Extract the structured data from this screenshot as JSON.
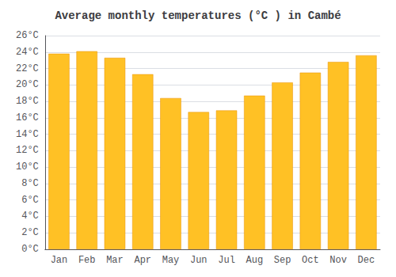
{
  "chart_data": {
    "type": "bar",
    "title": "Average monthly temperatures (°C ) in Cambé",
    "categories": [
      "Jan",
      "Feb",
      "Mar",
      "Apr",
      "May",
      "Jun",
      "Jul",
      "Aug",
      "Sep",
      "Oct",
      "Nov",
      "Dec"
    ],
    "values": [
      23.8,
      24.1,
      23.3,
      21.3,
      18.4,
      16.7,
      16.9,
      18.7,
      20.3,
      21.5,
      22.8,
      23.6
    ],
    "color": "#FFC125",
    "ylim": [
      0,
      26
    ],
    "yticks": [
      {
        "value": 0,
        "label": "0°C"
      },
      {
        "value": 2,
        "label": "2°C"
      },
      {
        "value": 4,
        "label": "4°C"
      },
      {
        "value": 6,
        "label": "6°C"
      },
      {
        "value": 8,
        "label": "8°C"
      },
      {
        "value": 10,
        "label": "10°C"
      },
      {
        "value": 12,
        "label": "12°C"
      },
      {
        "value": 14,
        "label": "14°C"
      },
      {
        "value": 16,
        "label": "16°C"
      },
      {
        "value": 18,
        "label": "18°C"
      },
      {
        "value": 20,
        "label": "20°C"
      },
      {
        "value": 22,
        "label": "22°C"
      },
      {
        "value": 24,
        "label": "24°C"
      },
      {
        "value": 26,
        "label": "26°C"
      }
    ],
    "grid": true
  }
}
